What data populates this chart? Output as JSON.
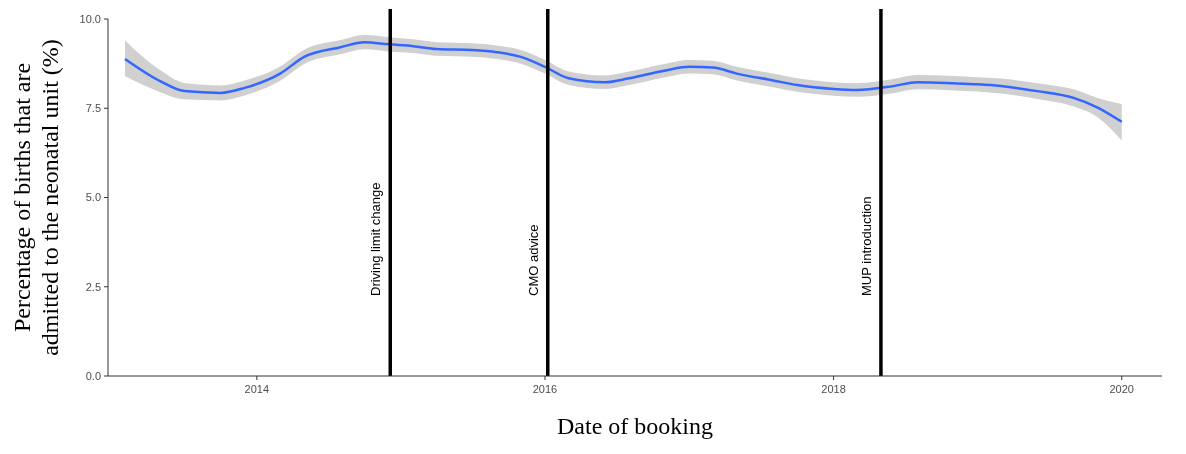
{
  "chart_data": {
    "type": "line",
    "xlabel": "Date of booking",
    "ylabel": "Percentage of births that are\nadmitted to the neonatal unit (%)",
    "x": [
      "2013-02",
      "2013-05",
      "2013-07",
      "2013-10",
      "2013-12",
      "2014-03",
      "2014-05",
      "2014-08",
      "2014-10",
      "2014-12",
      "2015-02",
      "2015-04",
      "2015-07",
      "2015-09",
      "2015-11",
      "2016-01",
      "2016-03",
      "2016-06",
      "2016-08",
      "2016-11",
      "2017-01",
      "2017-03",
      "2017-05",
      "2017-08",
      "2017-10",
      "2018-01",
      "2018-03",
      "2018-06",
      "2018-08",
      "2018-11",
      "2019-01",
      "2019-03",
      "2019-06",
      "2019-09",
      "2019-11",
      "2020-01"
    ],
    "series": [
      {
        "color": "#3366ff",
        "values": [
          8.88,
          8.26,
          7.98,
          7.93,
          8.07,
          8.47,
          8.94,
          9.21,
          9.35,
          9.29,
          9.24,
          9.16,
          9.13,
          9.07,
          8.94,
          8.66,
          8.34,
          8.23,
          8.34,
          8.56,
          8.66,
          8.64,
          8.47,
          8.28,
          8.15,
          8.04,
          8.01,
          8.12,
          8.23,
          8.2,
          8.17,
          8.12,
          7.98,
          7.79,
          7.52,
          7.12
        ],
        "lower": [
          8.4,
          7.95,
          7.75,
          7.72,
          7.86,
          8.27,
          8.74,
          9.01,
          9.15,
          9.09,
          9.05,
          8.97,
          8.94,
          8.88,
          8.75,
          8.47,
          8.15,
          8.04,
          8.15,
          8.37,
          8.47,
          8.45,
          8.28,
          8.09,
          7.96,
          7.85,
          7.82,
          7.92,
          8.03,
          8,
          7.97,
          7.91,
          7.76,
          7.55,
          7.25,
          6.6
        ],
        "upper": [
          9.4,
          8.57,
          8.21,
          8.14,
          8.28,
          8.67,
          9.14,
          9.41,
          9.55,
          9.49,
          9.43,
          9.35,
          9.32,
          9.26,
          9.13,
          8.85,
          8.53,
          8.42,
          8.53,
          8.75,
          8.85,
          8.83,
          8.66,
          8.47,
          8.34,
          8.23,
          8.2,
          8.32,
          8.43,
          8.4,
          8.37,
          8.33,
          8.2,
          8.03,
          7.79,
          7.62
        ]
      }
    ],
    "xlim": [
      "2012-12-20",
      "2020-04-12"
    ],
    "xticks": [
      "2014",
      "2016",
      "2018",
      "2020"
    ],
    "ylim": [
      0,
      10
    ],
    "yticks": [
      {
        "value": 0,
        "label": "0.0"
      },
      {
        "value": 2.5,
        "label": "2.5"
      },
      {
        "value": 5,
        "label": "5.0"
      },
      {
        "value": 7.5,
        "label": "7.5"
      },
      {
        "value": 10,
        "label": "10.0"
      }
    ],
    "ref_lines": [
      {
        "axis": "x",
        "value": "2014-12-05",
        "label": "Driving limit change",
        "color": "#000000"
      },
      {
        "axis": "x",
        "value": "2016-01-08",
        "label": "CMO advice",
        "color": "#000000"
      },
      {
        "axis": "x",
        "value": "2018-05-01",
        "label": "MUP introduction",
        "color": "#000000"
      }
    ]
  }
}
